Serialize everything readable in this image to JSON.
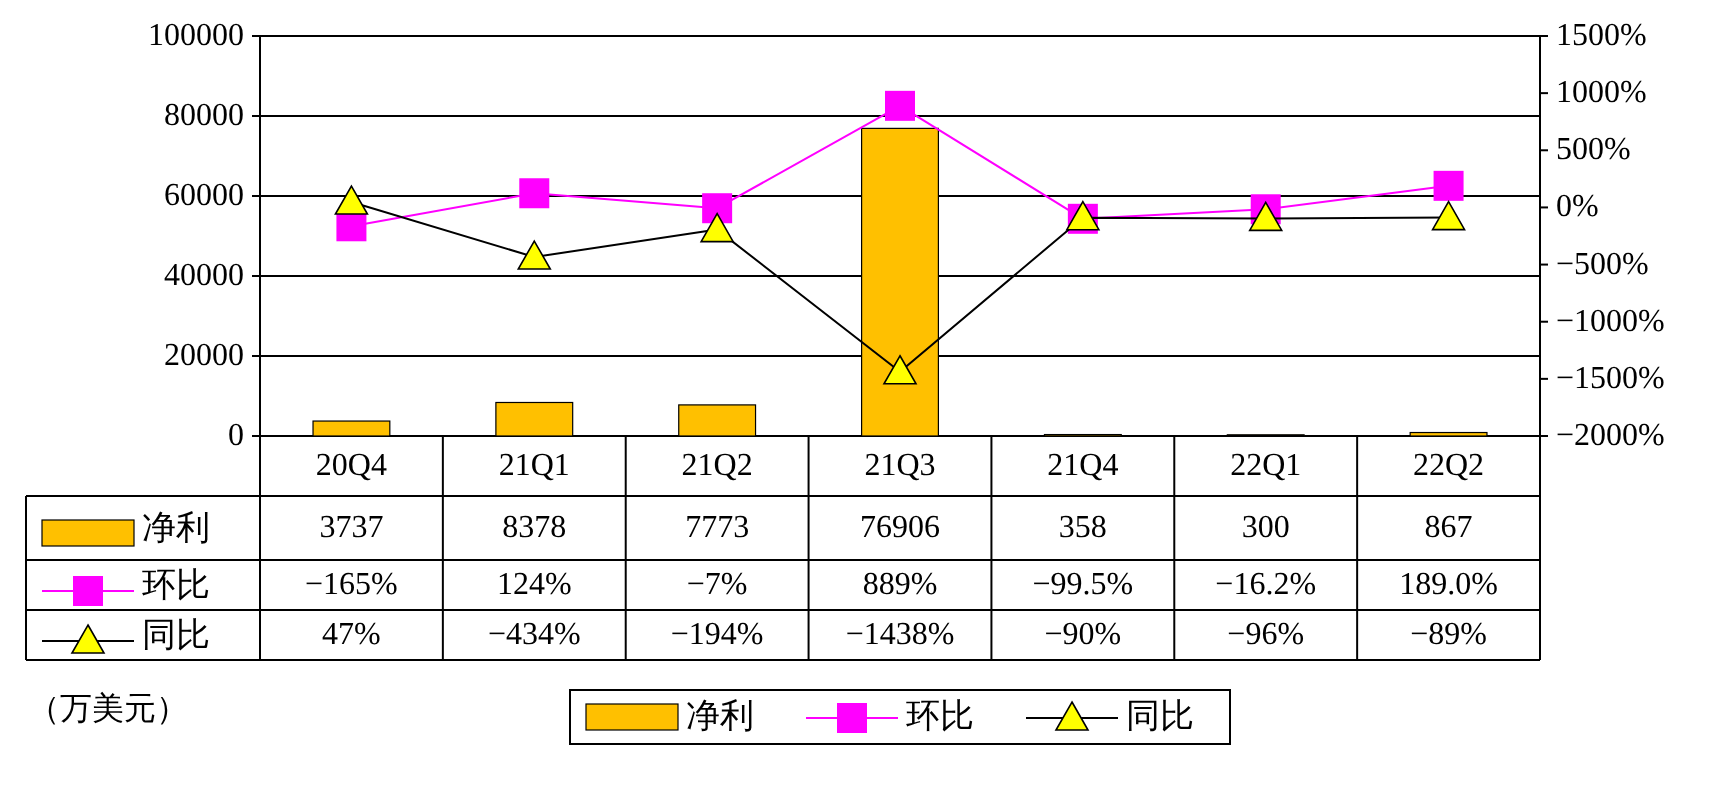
{
  "chart_data": {
    "type": "bar",
    "categories": [
      "20Q4",
      "21Q1",
      "21Q2",
      "21Q3",
      "21Q4",
      "22Q1",
      "22Q2"
    ],
    "series": [
      {
        "name": "净利",
        "color": "#ffc000",
        "values": [
          3737,
          8378,
          7773,
          76906,
          358,
          300,
          867
        ],
        "value_labels": [
          "3737",
          "8378",
          "7773",
          "76906",
          "358",
          "300",
          "867"
        ]
      },
      {
        "name": "环比",
        "type": "line",
        "axis": "y2",
        "marker": "square",
        "color": "#ff00ff",
        "values": [
          -165,
          124,
          -7,
          889,
          -99.5,
          -16.2,
          189.0
        ],
        "value_labels": [
          "−165%",
          "124%",
          "−7%",
          "889%",
          "−99.5%",
          "−16.2%",
          "189.0%"
        ]
      },
      {
        "name": "同比",
        "type": "line",
        "axis": "y2",
        "marker": "triangle",
        "color": "#000000",
        "values": [
          47,
          -434,
          -194,
          -1438,
          -90,
          -96,
          -89
        ],
        "value_labels": [
          "47%",
          "−434%",
          "−194%",
          "−1438%",
          "−90%",
          "−96%",
          "−89%"
        ]
      }
    ],
    "ylim": [
      0,
      100000
    ],
    "yticks": [
      0,
      20000,
      40000,
      60000,
      80000,
      100000
    ],
    "y2lim": [
      -2000,
      1500
    ],
    "y2ticks": [
      {
        "value": -2000,
        "label": "−2000%"
      },
      {
        "value": -1500,
        "label": "−1500%"
      },
      {
        "value": -1000,
        "label": "−1000%"
      },
      {
        "value": -500,
        "label": "−500%"
      },
      {
        "value": 0,
        "label": "0%"
      },
      {
        "value": 500,
        "label": "500%"
      },
      {
        "value": 1000,
        "label": "1000%"
      },
      {
        "value": 1500,
        "label": "1500%"
      }
    ],
    "grid": "y",
    "legend": "bottom",
    "annotations": [
      "（万美元）"
    ]
  }
}
